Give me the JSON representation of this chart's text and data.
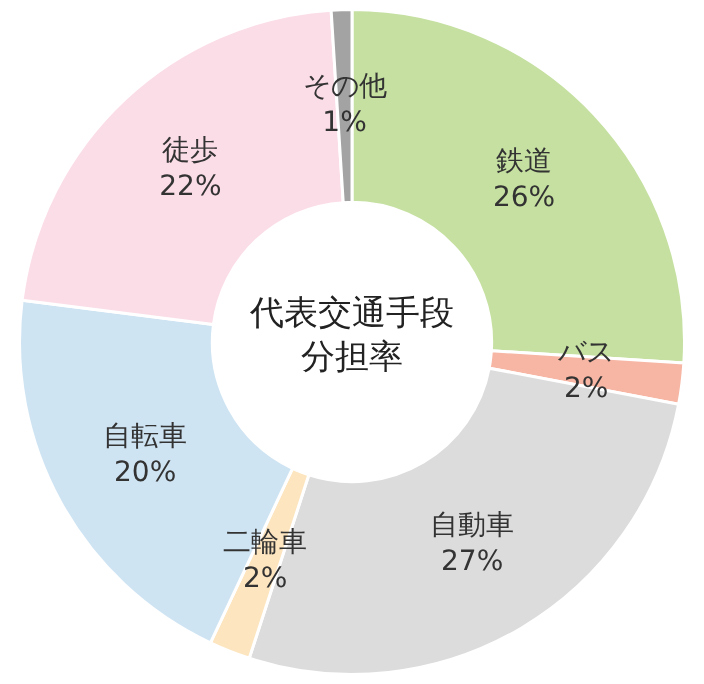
{
  "chart_data": {
    "type": "donut",
    "title": "代表交通手段分担率",
    "categories": [
      "鉄道",
      "バス",
      "自動車",
      "二輪車",
      "自転車",
      "徒歩",
      "その他"
    ],
    "values": [
      26,
      2,
      27,
      2,
      20,
      22,
      1
    ],
    "colors": [
      "#c5e0a0",
      "#f7b5a3",
      "#dcdcdc",
      "#fde5bf",
      "#cfe4f3",
      "#fbdde7",
      "#a3a3a3"
    ],
    "value_labels": [
      "26%",
      "2%",
      "27%",
      "2%",
      "20%",
      "22%",
      "1%"
    ],
    "legend": false
  }
}
